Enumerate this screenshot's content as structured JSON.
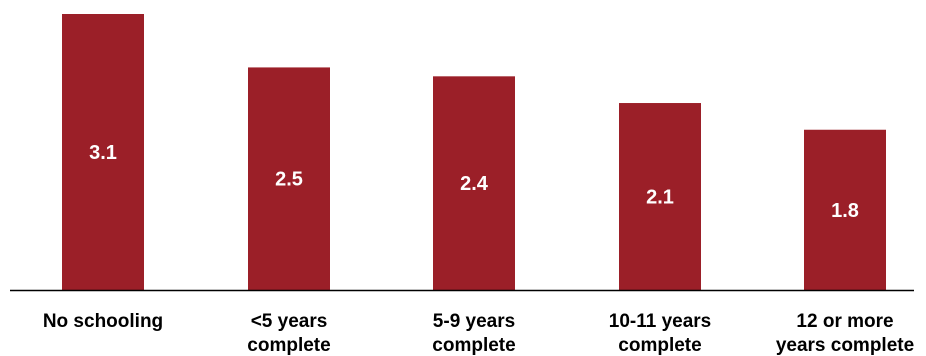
{
  "chart_data": {
    "type": "bar",
    "categories": [
      [
        "No schooling"
      ],
      [
        "<5 years",
        "complete"
      ],
      [
        "5-9 years",
        "complete"
      ],
      [
        "10-11 years",
        "complete"
      ],
      [
        "12 or more",
        "years complete"
      ]
    ],
    "values": [
      3.1,
      2.5,
      2.4,
      2.1,
      1.8
    ],
    "data_labels": [
      "3.1",
      "2.5",
      "2.4",
      "2.1",
      "1.8"
    ],
    "title": "",
    "xlabel": "",
    "ylabel": "",
    "ylim": [
      0,
      3.1
    ],
    "grid": false,
    "bar_color": "#9b1f28",
    "axis_color": "#000000",
    "label_color": "#ffffff"
  }
}
